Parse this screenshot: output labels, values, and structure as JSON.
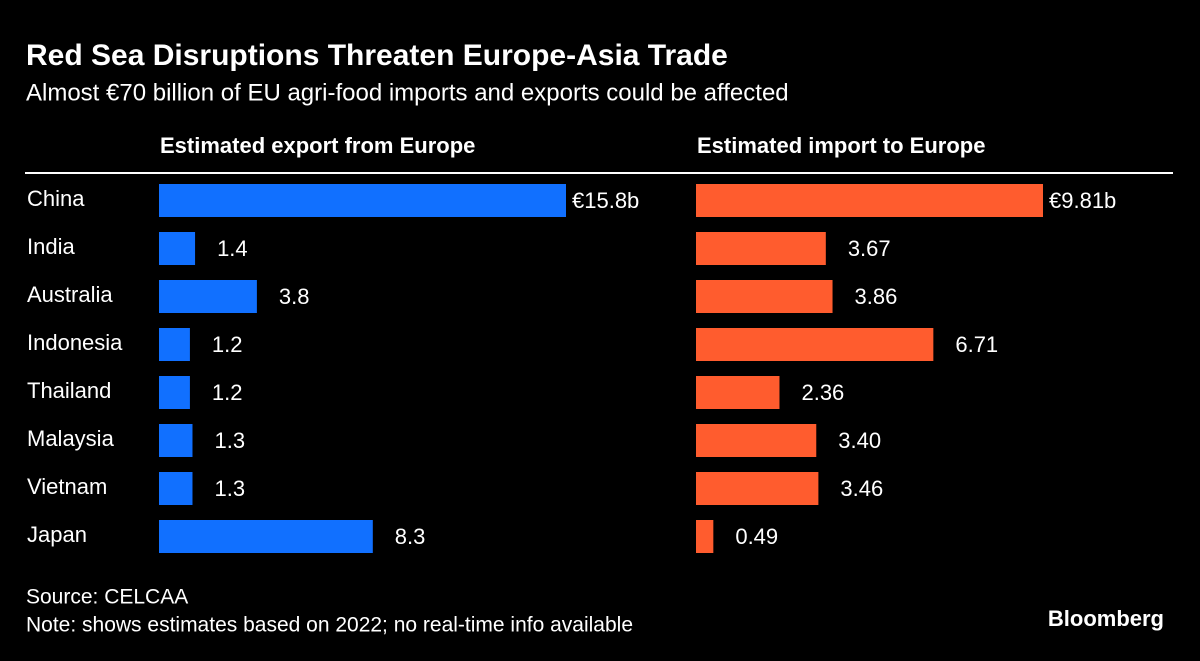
{
  "title": "Red Sea Disruptions Threaten Europe-Asia Trade",
  "subtitle": "Almost €70 billion of EU agri-food imports and exports could be affected",
  "source": "Source: CELCAA",
  "note": "Note: shows estimates based on 2022; no real-time info available",
  "brand": "Bloomberg",
  "chart_data": {
    "type": "bar",
    "categories": [
      "China",
      "India",
      "Australia",
      "Indonesia",
      "Thailand",
      "Malaysia",
      "Vietnam",
      "Japan"
    ],
    "series": [
      {
        "name": "Estimated export from Europe",
        "color": "#1170ff",
        "values": [
          15.8,
          1.4,
          3.8,
          1.2,
          1.2,
          1.3,
          1.3,
          8.3
        ],
        "value_labels": [
          "€15.8b",
          "1.4",
          "3.8",
          "1.2",
          "1.2",
          "1.3",
          "1.3",
          "8.3"
        ]
      },
      {
        "name": "Estimated import to Europe",
        "color": "#ff5c2e",
        "values": [
          9.81,
          3.67,
          3.86,
          6.71,
          2.36,
          3.4,
          3.46,
          0.49
        ],
        "value_labels": [
          "€9.81b",
          "3.67",
          "3.86",
          "6.71",
          "2.36",
          "3.40",
          "3.46",
          "0.49"
        ]
      }
    ]
  }
}
